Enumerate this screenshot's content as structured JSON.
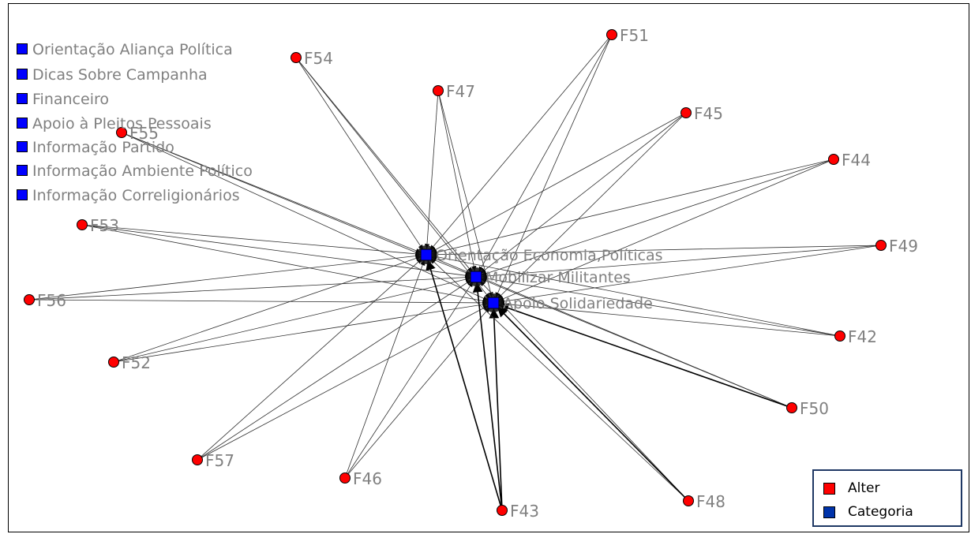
{
  "colors": {
    "alter": "#ff0000",
    "categoria": "#0000ff",
    "label": "#808080",
    "legend_border": "#1f3864"
  },
  "categories": [
    {
      "id": "C1",
      "label": "Orientação Aliança Política"
    },
    {
      "id": "C2",
      "label": "Dicas Sobre Campanha"
    },
    {
      "id": "C3",
      "label": "Financeiro"
    },
    {
      "id": "C4",
      "label": "Apoio à Pleitos Pessoais"
    },
    {
      "id": "C5",
      "label": "Informação Partido"
    },
    {
      "id": "C6",
      "label": "Informação Ambiente Político"
    },
    {
      "id": "C7",
      "label": "Informação Correligionários"
    },
    {
      "id": "H1",
      "label": "Orientação Economia,Políticas"
    },
    {
      "id": "H2",
      "label": "Mobilizar Militantes"
    },
    {
      "id": "H3",
      "label": "Apoio Solidariedade"
    }
  ],
  "alters": [
    "F51",
    "F54",
    "F47",
    "F45",
    "F55",
    "F44",
    "F53",
    "F49",
    "F56",
    "F42",
    "F52",
    "F50",
    "F57",
    "F46",
    "F43",
    "F48"
  ],
  "edges": [
    [
      "F51",
      "H1"
    ],
    [
      "F51",
      "H2"
    ],
    [
      "F51",
      "H3"
    ],
    [
      "F54",
      "H1"
    ],
    [
      "F54",
      "H2"
    ],
    [
      "F54",
      "H3"
    ],
    [
      "F47",
      "H1"
    ],
    [
      "F47",
      "H2"
    ],
    [
      "F47",
      "H3"
    ],
    [
      "F45",
      "H1"
    ],
    [
      "F45",
      "H2"
    ],
    [
      "F45",
      "H3"
    ],
    [
      "F55",
      "H1"
    ],
    [
      "F55",
      "H2"
    ],
    [
      "F55",
      "H3"
    ],
    [
      "F44",
      "H1"
    ],
    [
      "F44",
      "H2"
    ],
    [
      "F44",
      "H3"
    ],
    [
      "F53",
      "H1"
    ],
    [
      "F53",
      "H2"
    ],
    [
      "F53",
      "H3"
    ],
    [
      "F49",
      "H1"
    ],
    [
      "F49",
      "H2"
    ],
    [
      "F49",
      "H3"
    ],
    [
      "F56",
      "H1"
    ],
    [
      "F56",
      "H2"
    ],
    [
      "F56",
      "H3"
    ],
    [
      "F42",
      "H1"
    ],
    [
      "F42",
      "H2"
    ],
    [
      "F42",
      "H3"
    ],
    [
      "F52",
      "H1"
    ],
    [
      "F52",
      "H2"
    ],
    [
      "F52",
      "H3"
    ],
    [
      "F50",
      "H1"
    ],
    [
      "F50",
      "H2"
    ],
    [
      "F50",
      "H3"
    ],
    [
      "F57",
      "H1"
    ],
    [
      "F57",
      "H2"
    ],
    [
      "F57",
      "H3"
    ],
    [
      "F46",
      "H1"
    ],
    [
      "F46",
      "H2"
    ],
    [
      "F46",
      "H3"
    ],
    [
      "F43",
      "H1"
    ],
    [
      "F43",
      "H2"
    ],
    [
      "F43",
      "H3"
    ],
    [
      "F48",
      "H1"
    ],
    [
      "F48",
      "H2"
    ],
    [
      "F48",
      "H3"
    ]
  ],
  "legend": {
    "alter_label": "Alter",
    "categoria_label": "Categoria"
  }
}
